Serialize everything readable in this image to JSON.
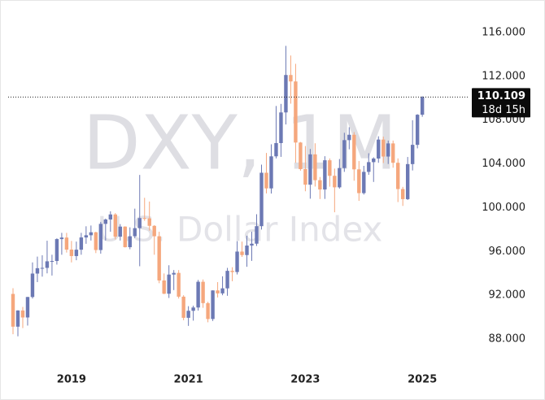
{
  "chart_data": {
    "type": "candlestick",
    "watermark": "DXY, 1M",
    "subtitle": "U.S. Dollar Index",
    "categories": [
      null,
      null,
      null,
      null,
      null,
      null,
      null,
      null,
      null,
      null,
      null,
      null,
      "2019",
      null,
      null,
      null,
      null,
      null,
      null,
      null,
      null,
      null,
      null,
      null,
      null,
      null,
      null,
      null,
      null,
      null,
      null,
      null,
      null,
      null,
      null,
      null,
      "2021",
      null,
      null,
      null,
      null,
      null,
      null,
      null,
      null,
      null,
      null,
      null,
      null,
      null,
      null,
      null,
      null,
      null,
      null,
      null,
      null,
      null,
      null,
      null,
      "2023",
      null,
      null,
      null,
      null,
      null,
      null,
      null,
      null,
      null,
      null,
      null,
      null,
      null,
      null,
      null,
      null,
      null,
      null,
      null,
      null,
      null,
      null,
      null,
      "2025"
    ],
    "open": [
      92.12,
      89.13,
      90.61,
      89.97,
      91.84,
      93.98,
      94.47,
      94.5,
      95.1,
      95.13,
      97.13,
      97.27,
      96.17,
      95.58,
      96.16,
      97.28,
      97.48,
      97.75,
      96.13,
      98.52,
      98.92,
      99.38,
      97.35,
      98.27,
      96.39,
      97.39,
      98.13,
      99.05,
      99.02,
      98.34,
      97.39,
      93.35,
      92.14,
      93.89,
      94.04,
      91.87,
      89.94,
      90.58,
      90.88,
      93.23,
      91.28,
      89.83,
      92.44,
      92.17,
      92.63,
      94.23,
      94.12,
      95.99,
      95.67,
      96.54,
      96.71,
      98.31,
      103.19,
      101.76,
      104.69,
      105.9,
      108.7,
      112.12,
      111.53,
      105.95,
      103.52,
      102.1,
      104.87,
      102.51,
      101.66,
      104.33,
      102.91,
      101.86,
      103.62,
      106.17,
      106.66,
      103.5,
      101.33,
      103.27,
      104.16,
      104.49,
      106.22,
      104.67,
      105.87,
      104.1,
      101.7,
      100.78,
      103.98,
      105.74,
      108.49
    ],
    "high": [
      92.64,
      90.63,
      90.93,
      91.85,
      95.0,
      95.53,
      95.65,
      96.98,
      95.7,
      97.2,
      97.7,
      97.7,
      96.96,
      96.9,
      97.7,
      98.3,
      98.37,
      97.8,
      98.7,
      99.0,
      99.67,
      99.5,
      98.5,
      98.3,
      98.2,
      99.91,
      102.99,
      100.9,
      100.56,
      98.4,
      97.8,
      93.99,
      94.74,
      94.3,
      94.3,
      92.0,
      91.0,
      91.05,
      93.4,
      93.44,
      91.4,
      92.45,
      93.2,
      93.73,
      94.5,
      94.56,
      96.94,
      96.9,
      97.44,
      97.8,
      99.4,
      103.93,
      105.0,
      105.79,
      109.29,
      109.48,
      114.78,
      113.9,
      113.14,
      106.0,
      105.63,
      105.36,
      105.88,
      102.8,
      104.7,
      104.5,
      103.57,
      104.44,
      106.84,
      107.35,
      106.9,
      104.26,
      103.82,
      104.97,
      104.6,
      106.52,
      106.49,
      106.13,
      106.13,
      104.5,
      101.9,
      104.63,
      107.99,
      108.54,
      110.18
    ],
    "low": [
      88.44,
      88.25,
      89.0,
      89.23,
      91.7,
      93.2,
      93.7,
      94.0,
      93.8,
      94.8,
      95.7,
      95.9,
      95.0,
      95.2,
      95.7,
      96.7,
      97.0,
      95.85,
      95.8,
      97.0,
      97.8,
      97.1,
      97.0,
      96.36,
      96.2,
      97.2,
      94.65,
      98.8,
      97.9,
      95.7,
      93.1,
      92.1,
      91.75,
      92.47,
      91.7,
      89.72,
      89.2,
      89.68,
      90.6,
      90.85,
      89.53,
      89.65,
      91.8,
      92.0,
      91.95,
      93.28,
      93.9,
      95.5,
      94.6,
      95.14,
      96.5,
      98.0,
      101.3,
      101.29,
      104.5,
      104.64,
      107.6,
      109.5,
      104.1,
      103.38,
      101.5,
      100.82,
      101.93,
      100.79,
      100.8,
      101.92,
      99.58,
      101.74,
      103.27,
      105.33,
      102.46,
      100.62,
      101.2,
      103.0,
      102.35,
      104.1,
      104.08,
      103.99,
      103.65,
      100.51,
      100.16,
      100.7,
      103.4,
      105.42,
      108.3
    ],
    "close": [
      89.13,
      90.61,
      89.97,
      91.84,
      93.98,
      94.47,
      94.5,
      95.1,
      95.13,
      97.13,
      97.27,
      96.17,
      95.58,
      96.16,
      97.28,
      97.48,
      97.75,
      96.13,
      98.52,
      98.92,
      99.38,
      97.35,
      98.27,
      96.39,
      97.39,
      98.13,
      99.05,
      99.02,
      98.34,
      97.39,
      93.35,
      92.14,
      93.89,
      94.04,
      91.87,
      89.94,
      90.58,
      90.88,
      93.23,
      91.28,
      89.83,
      92.44,
      92.17,
      92.63,
      94.23,
      94.12,
      95.99,
      95.67,
      96.54,
      96.71,
      98.31,
      103.19,
      101.76,
      104.69,
      105.9,
      108.7,
      112.12,
      111.53,
      105.95,
      103.52,
      102.1,
      104.87,
      102.51,
      101.66,
      104.33,
      102.91,
      101.86,
      103.62,
      106.17,
      106.66,
      103.5,
      101.33,
      103.27,
      104.16,
      104.49,
      106.22,
      104.67,
      105.87,
      104.1,
      101.7,
      100.78,
      103.98,
      105.74,
      108.49,
      110.109
    ],
    "up_color": "#6c79b4",
    "down_color": "#f5a77d",
    "last_price": 110.109,
    "countdown": "18d 15h",
    "ylim": [
      85.55,
      118.97
    ],
    "yticks": [
      {
        "value": 88,
        "label": "88.000"
      },
      {
        "value": 92,
        "label": "92.000"
      },
      {
        "value": 96,
        "label": "96.000"
      },
      {
        "value": 100,
        "label": "100.000"
      },
      {
        "value": 104,
        "label": "104.000"
      },
      {
        "value": 108,
        "label": "108.000"
      },
      {
        "value": 112,
        "label": "112.000"
      },
      {
        "value": 116,
        "label": "116.000"
      }
    ]
  }
}
